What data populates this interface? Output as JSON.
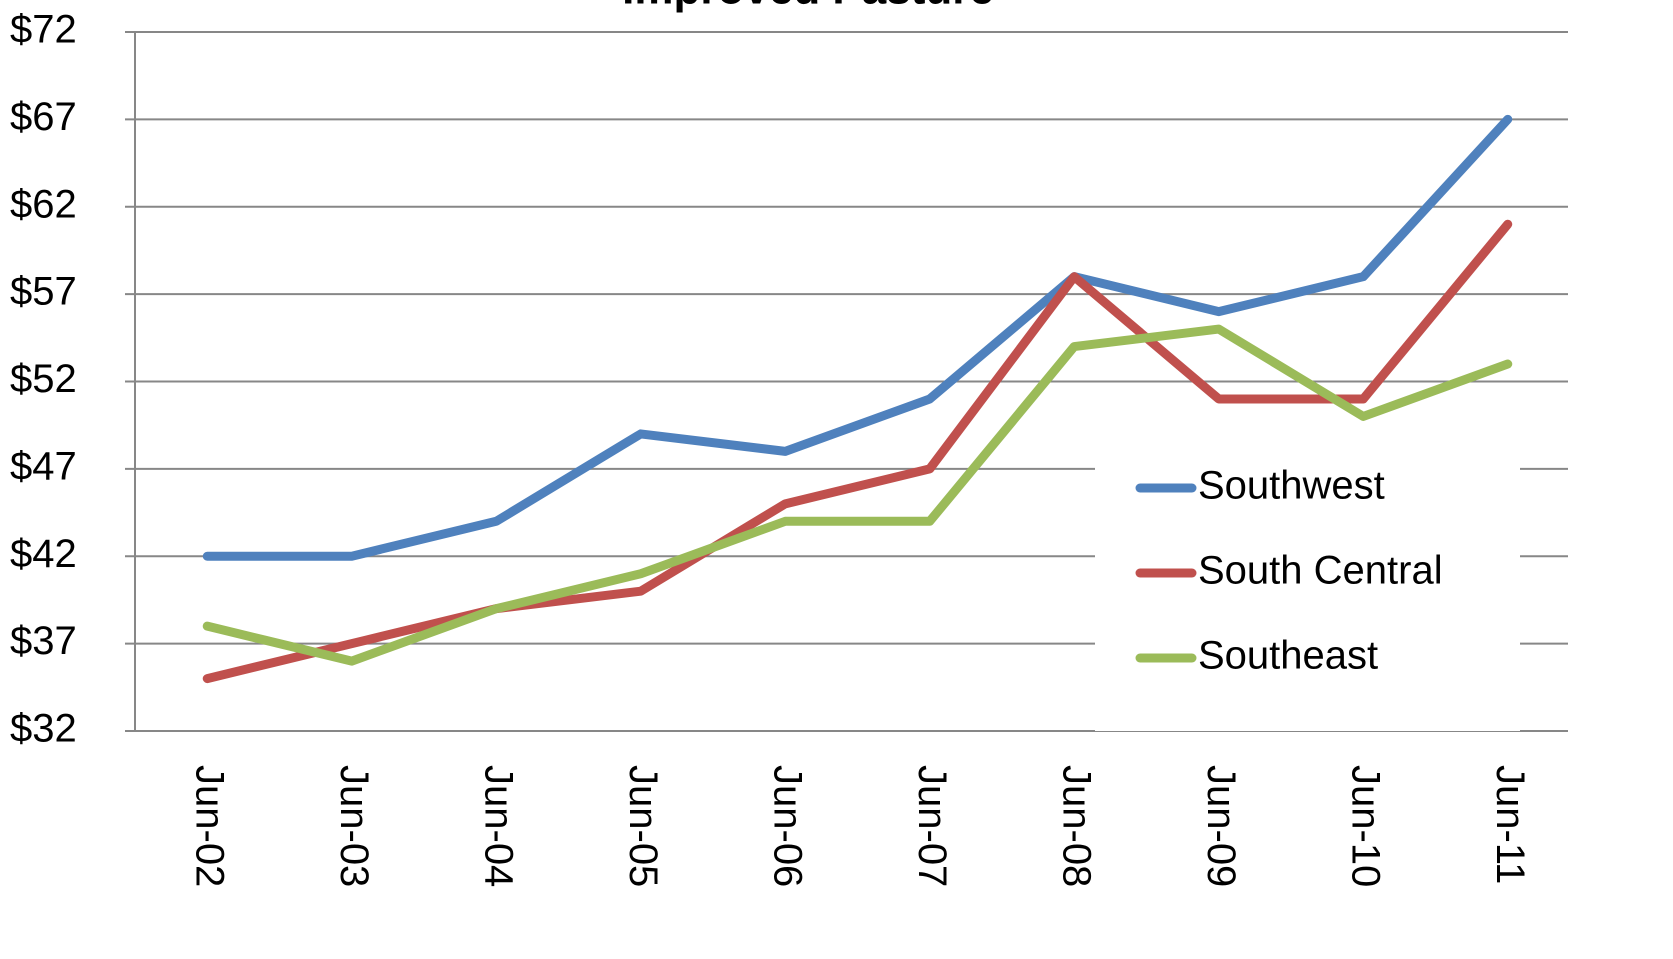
{
  "chart_data": {
    "type": "line",
    "title": "Improved Pasture",
    "categories": [
      "Jun-02",
      "Jun-03",
      "Jun-04",
      "Jun-05",
      "Jun-06",
      "Jun-07",
      "Jun-08",
      "Jun-09",
      "Jun-10",
      "Jun-11"
    ],
    "series": [
      {
        "name": "Southwest",
        "color": "#4f81bd",
        "values": [
          42,
          42,
          44,
          49,
          48,
          51,
          58,
          56,
          58,
          67
        ]
      },
      {
        "name": "South Central",
        "color": "#c0504d",
        "values": [
          35,
          37,
          39,
          40,
          45,
          47,
          58,
          51,
          51,
          61
        ]
      },
      {
        "name": "Southeast",
        "color": "#9bbb59",
        "values": [
          38,
          36,
          39,
          41,
          44,
          44,
          54,
          55,
          50,
          53
        ]
      }
    ],
    "ylim": [
      32,
      72
    ],
    "yticks": [
      {
        "value": 32,
        "label": "$32"
      },
      {
        "value": 37,
        "label": "$37"
      },
      {
        "value": 42,
        "label": "$42"
      },
      {
        "value": 47,
        "label": "$47"
      },
      {
        "value": 52,
        "label": "$52"
      },
      {
        "value": 57,
        "label": "$57"
      },
      {
        "value": 62,
        "label": "$62"
      },
      {
        "value": 67,
        "label": "$67"
      },
      {
        "value": 72,
        "label": "$72"
      }
    ],
    "grid": true,
    "legend": "lower right"
  }
}
